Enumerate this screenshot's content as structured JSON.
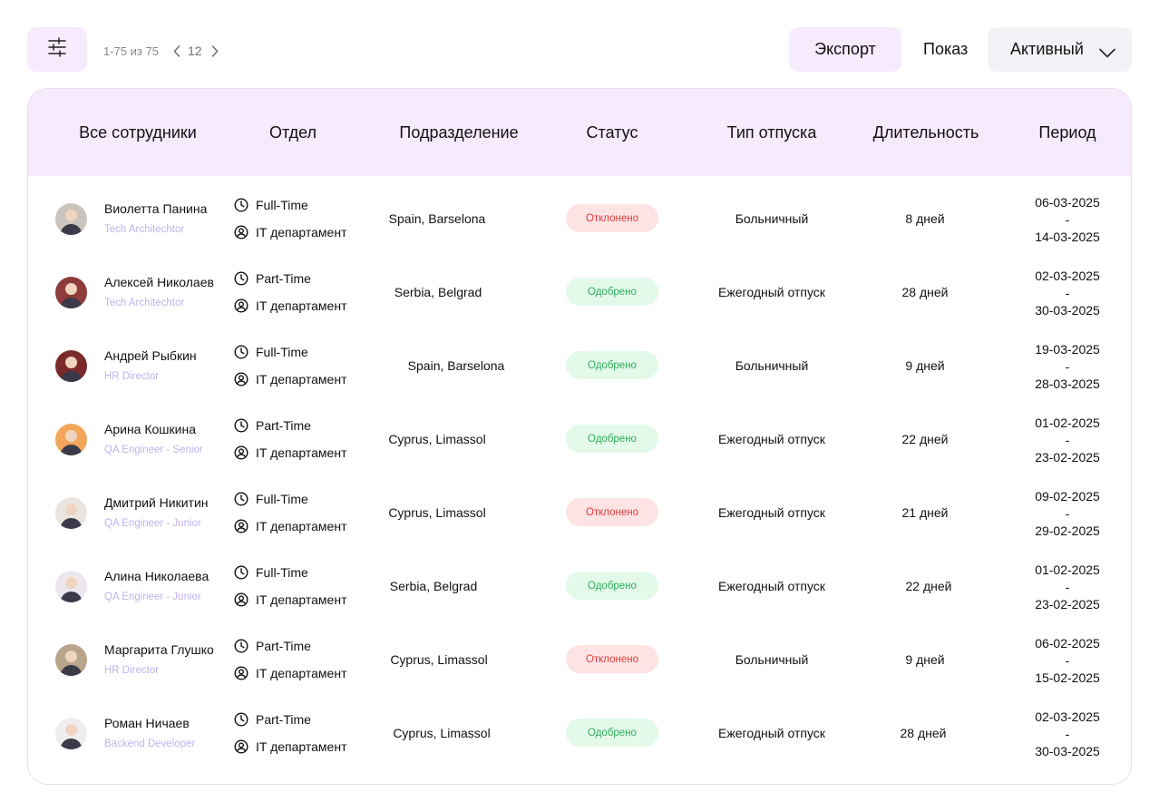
{
  "toolbar": {
    "filter_icon": "sliders-icon",
    "pagination": {
      "range": "1-75 из 75",
      "page": "12"
    },
    "export_label": "Экспорт",
    "show_label": "Показ",
    "status_select": {
      "value": "Активный"
    }
  },
  "table": {
    "headers": [
      "Все сотрудники",
      "Отдел",
      "Подразделение",
      "Статус",
      "Тип отпуска",
      "Длительность",
      "Период"
    ],
    "rows": [
      {
        "name": "Виолетта Панина",
        "role": "Tech Architechtor",
        "employment": "Full-Time",
        "department": "IT департамент",
        "division": "Spain, Barselona",
        "status": "Отклонено",
        "status_kind": "rejected",
        "leave_type": "Больничный",
        "duration": "8 дней",
        "period_start": "06-03-2025",
        "period_sep": "-",
        "period_end": "14-03-2025",
        "avatar_color": "#c9c4bd"
      },
      {
        "name": "Алексей Николаев",
        "role": "Tech Architechtor",
        "employment": "Part-Time",
        "department": "IT департамент",
        "division": "Serbia, Belgrad",
        "status": "Одобрено",
        "status_kind": "approved",
        "leave_type": "Ежегодный отпуск",
        "duration": "28 дней",
        "period_start": "02-03-2025",
        "period_sep": "-",
        "period_end": "30-03-2025",
        "avatar_color": "#8d3b3b"
      },
      {
        "name": "Андрей Рыбкин",
        "role": "HR Director",
        "employment": "Full-Time",
        "department": "IT департамент",
        "division": "Spain, Barselona",
        "status": "Одобрено",
        "status_kind": "approved",
        "leave_type": "Больничный",
        "duration": "9 дней",
        "period_start": "19-03-2025",
        "period_sep": "-",
        "period_end": "28-03-2025",
        "avatar_color": "#7a2a2a"
      },
      {
        "name": "Арина Кошкина",
        "role": "QA Engineer - Senior",
        "employment": "Part-Time",
        "department": "IT департамент",
        "division": "Cyprus, Limassol",
        "status": "Одобрено",
        "status_kind": "approved",
        "leave_type": "Ежегодный отпуск",
        "duration": "22 дней",
        "period_start": "01-02-2025",
        "period_sep": "-",
        "period_end": "23-02-2025",
        "avatar_color": "#f2a65a"
      },
      {
        "name": "Дмитрий Никитин",
        "role": "QA Engineer - Junior",
        "employment": "Full-Time",
        "department": "IT департамент",
        "division": "Cyprus, Limassol",
        "status": "Отклонено",
        "status_kind": "rejected",
        "leave_type": "Ежегодный отпуск",
        "duration": "21 дней",
        "period_start": "09-02-2025",
        "period_sep": "-",
        "period_end": "29-02-2025",
        "avatar_color": "#e9e6e2"
      },
      {
        "name": "Алина Николаева",
        "role": "QA Engineer - Junior",
        "employment": "Full-Time",
        "department": "IT департамент",
        "division": "Serbia, Belgrad",
        "status": "Одобрено",
        "status_kind": "approved",
        "leave_type": "Ежегодный отпуск",
        "duration": "22 дней",
        "period_start": "01-02-2025",
        "period_sep": "-",
        "period_end": "23-02-2025",
        "avatar_color": "#ece7ef"
      },
      {
        "name": "Маргарита Глушко",
        "role": "HR Director",
        "employment": "Part-Time",
        "department": "IT департамент",
        "division": "Cyprus, Limassol",
        "status": "Отклонено",
        "status_kind": "rejected",
        "leave_type": "Больничный",
        "duration": "9 дней",
        "period_start": "06-02-2025",
        "period_sep": "-",
        "period_end": "15-02-2025",
        "avatar_color": "#b8a58c"
      },
      {
        "name": "Роман Ничаев",
        "role": "Backend Developer",
        "employment": "Part-Time",
        "department": "IT департамент",
        "division": "Cyprus, Limassol",
        "status": "Одобрено",
        "status_kind": "approved",
        "leave_type": "Ежегодный отпуск",
        "duration": "28 дней",
        "period_start": "02-03-2025",
        "period_sep": "-",
        "period_end": "30-03-2025",
        "avatar_color": "#eeeeee"
      }
    ]
  },
  "colors": {
    "accent_bg": "#f6eafd",
    "approved_bg": "#e3f9ea",
    "approved_text": "#2fae5a",
    "rejected_bg": "#fde3e3",
    "rejected_text": "#e23b3b",
    "role_text": "#c2b2ee"
  },
  "icons": {
    "employment": "clock-icon",
    "department": "user-circle-icon",
    "prev": "chevron-left-icon",
    "next": "chevron-right-icon",
    "select": "chevron-down-icon"
  }
}
